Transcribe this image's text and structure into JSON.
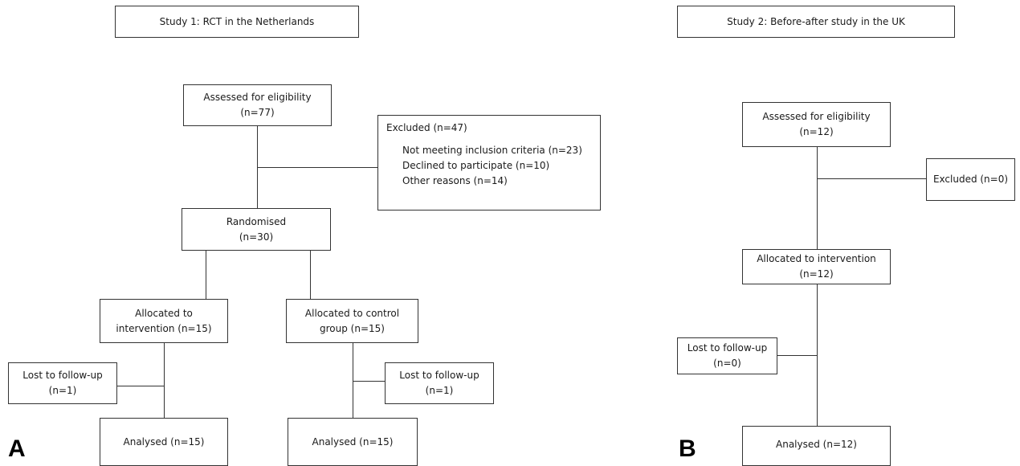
{
  "study1": {
    "title": "Study 1: RCT in the Netherlands",
    "panel_label": "A",
    "eligibility": {
      "label": "Assessed for eligibility",
      "n": "(n=77)"
    },
    "excluded": {
      "title": "Excluded (n=47)",
      "reasons": [
        "Not meeting inclusion criteria (n=23)",
        "Declined to participate (n=10)",
        "Other reasons (n=14)"
      ]
    },
    "randomised": {
      "label": "Randomised",
      "n": "(n=30)"
    },
    "intervention_arm": {
      "allocated": {
        "line1": "Allocated to",
        "line2": "intervention (n=15)"
      },
      "lost": {
        "label": "Lost to follow-up",
        "n": "(n=1)"
      },
      "analysed": "Analysed (n=15)"
    },
    "control_arm": {
      "allocated": {
        "line1": "Allocated to control",
        "line2": "group  (n=15)"
      },
      "lost": {
        "label": "Lost to follow-up",
        "n": "(n=1)"
      },
      "analysed": "Analysed (n=15)"
    }
  },
  "study2": {
    "title": "Study 2: Before-after study in the UK",
    "panel_label": "B",
    "eligibility": {
      "label": "Assessed for eligibility",
      "n": "(n=12)"
    },
    "excluded": "Excluded (n=0)",
    "allocated": {
      "label": "Allocated to intervention",
      "n": "(n=12)"
    },
    "lost": {
      "label": "Lost to follow-up",
      "n": "(n=0)"
    },
    "analysed": "Analysed (n=12)"
  }
}
